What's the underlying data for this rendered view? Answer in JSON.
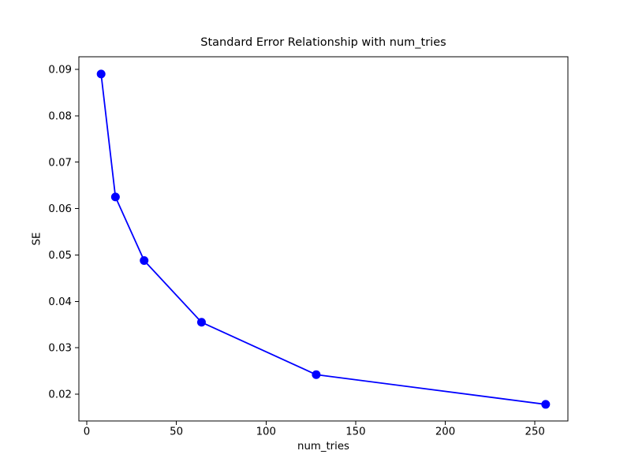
{
  "figure": {
    "background": "#ffffff",
    "text_color": "#000000",
    "spine_color": "#000000"
  },
  "chart_data": {
    "type": "line",
    "title": "Standard Error Relationship with num_tries",
    "xlabel": "num_tries",
    "ylabel": "SE",
    "x": [
      8,
      16,
      32,
      64,
      128,
      256
    ],
    "y": [
      0.089,
      0.0625,
      0.0488,
      0.0355,
      0.0242,
      0.0178
    ],
    "series": [
      {
        "name": "SE",
        "x": [
          8,
          16,
          32,
          64,
          128,
          256
        ],
        "values": [
          0.089,
          0.0625,
          0.0488,
          0.0355,
          0.0242,
          0.0178
        ]
      }
    ],
    "xlim": [
      -4.4,
      268.4
    ],
    "ylim": [
      0.01422,
      0.09272
    ],
    "xticks": {
      "values": [
        0,
        50,
        100,
        150,
        200,
        250
      ],
      "labels": [
        "0",
        "50",
        "100",
        "150",
        "200",
        "250"
      ]
    },
    "yticks": {
      "values": [
        0.02,
        0.03,
        0.04,
        0.05,
        0.06,
        0.07,
        0.08,
        0.09
      ],
      "labels": [
        "0.02",
        "0.03",
        "0.04",
        "0.05",
        "0.06",
        "0.07",
        "0.08",
        "0.09"
      ]
    },
    "line_color": "#0000ff",
    "marker": "o",
    "grid": false,
    "legend": null
  }
}
